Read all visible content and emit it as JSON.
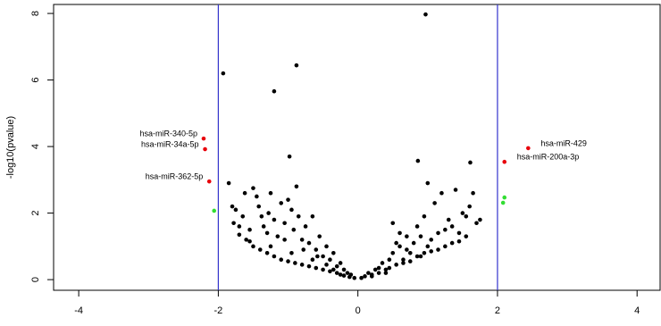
{
  "chart_data": {
    "type": "scatter",
    "y_label": "-log10(pvalue)",
    "xlim": [
      -4.36,
      4.33
    ],
    "ylim": [
      -0.32,
      8.27
    ],
    "xticks": [
      -4,
      -2,
      0,
      2,
      4
    ],
    "yticks": [
      0,
      2,
      4,
      6,
      8
    ],
    "vlines": [
      -2,
      2
    ],
    "vline_color": "#3333cc",
    "series": [
      {
        "color": "#000000",
        "x": [
          -1.93,
          -0.88,
          -1.2,
          0.97,
          -0.98,
          0.86,
          1.61,
          -1.85,
          -1.8,
          -1.75,
          -1.78,
          -1.7,
          -1.65,
          -1.55,
          -1.5,
          -1.45,
          -1.42,
          -1.38,
          -1.35,
          -1.3,
          -1.28,
          -1.25,
          -1.2,
          -1.15,
          -1.1,
          -1.05,
          -1.0,
          -0.95,
          -0.92,
          -0.88,
          -0.85,
          -0.8,
          -0.75,
          -0.7,
          -0.65,
          -0.6,
          -0.55,
          -0.5,
          -0.45,
          -0.4,
          -0.35,
          -0.3,
          -0.25,
          -0.2,
          -0.15,
          -0.1,
          -0.05,
          -1.6,
          -1.5,
          -1.4,
          -1.3,
          -1.2,
          -1.1,
          -1.0,
          -0.9,
          -0.8,
          -0.7,
          -0.6,
          -0.5,
          -0.4,
          -0.3,
          -0.2,
          -1.7,
          -1.55,
          -1.25,
          -0.95,
          -0.65,
          -0.45,
          -0.35,
          -0.25,
          -0.12,
          -1.62,
          -1.05,
          -0.78,
          -0.58,
          0.05,
          0.1,
          0.15,
          0.2,
          0.25,
          0.3,
          0.35,
          0.4,
          0.45,
          0.5,
          0.55,
          0.6,
          0.65,
          0.7,
          0.75,
          0.8,
          0.85,
          0.9,
          0.95,
          1.0,
          1.05,
          1.1,
          1.15,
          1.2,
          1.25,
          1.3,
          1.35,
          1.4,
          1.45,
          1.5,
          1.55,
          1.6,
          1.65,
          1.7,
          1.75,
          0.5,
          0.6,
          0.3,
          0.45,
          0.65,
          0.85,
          1.05,
          1.25,
          1.45,
          0.2,
          0.4,
          0.75,
          0.95,
          1.15,
          1.35,
          1.55,
          0.9,
          1.0,
          0.7,
          0.55
        ],
        "y": [
          6.2,
          6.44,
          5.66,
          7.97,
          3.7,
          3.57,
          3.52,
          2.9,
          2.2,
          2.1,
          1.7,
          1.6,
          1.9,
          1.5,
          2.75,
          2.5,
          2.2,
          1.9,
          1.6,
          1.4,
          2.0,
          2.6,
          1.8,
          1.3,
          2.3,
          1.7,
          2.4,
          2.1,
          1.5,
          2.8,
          1.9,
          1.2,
          1.6,
          1.1,
          1.9,
          0.9,
          1.3,
          0.7,
          1.0,
          0.6,
          0.8,
          0.4,
          0.5,
          0.3,
          0.2,
          0.15,
          0.05,
          1.2,
          1.0,
          0.9,
          0.8,
          0.7,
          0.6,
          0.55,
          0.5,
          0.45,
          0.4,
          0.35,
          0.3,
          0.25,
          0.2,
          0.12,
          1.35,
          1.15,
          1.0,
          0.8,
          0.6,
          0.45,
          0.3,
          0.15,
          0.08,
          2.6,
          1.2,
          0.9,
          0.7,
          0.05,
          0.1,
          0.2,
          0.15,
          0.3,
          0.35,
          0.5,
          0.3,
          0.6,
          0.8,
          0.45,
          1.0,
          0.6,
          1.3,
          0.8,
          1.1,
          1.6,
          0.7,
          1.9,
          2.9,
          1.2,
          2.3,
          0.9,
          2.6,
          1.5,
          1.8,
          1.1,
          2.7,
          1.4,
          2.0,
          1.3,
          2.2,
          2.6,
          1.7,
          1.8,
          1.7,
          1.4,
          0.2,
          0.35,
          0.5,
          0.7,
          0.85,
          1.0,
          1.15,
          0.1,
          0.2,
          0.55,
          0.8,
          1.4,
          1.6,
          1.9,
          1.3,
          1.0,
          0.9,
          1.1
        ]
      },
      {
        "color": "#e8000b",
        "x": [
          -2.21,
          -2.19,
          -2.13,
          2.44,
          2.1
        ],
        "y": [
          4.24,
          3.92,
          2.95,
          3.95,
          3.54
        ],
        "point_labels": [
          "hsa-miR-340-5p",
          "hsa-miR-34a-5p",
          "hsa-miR-362-5p",
          "hsa-miR-429",
          "hsa-miR-200a-3p"
        ]
      },
      {
        "color": "#33dd33",
        "x": [
          -2.06,
          2.1,
          2.08
        ],
        "y": [
          2.07,
          2.47,
          2.31
        ]
      }
    ]
  }
}
